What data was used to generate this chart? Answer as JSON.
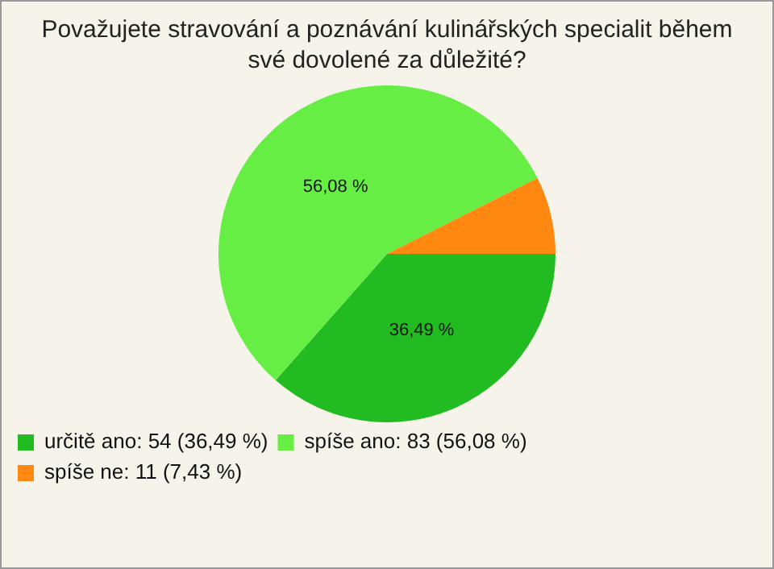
{
  "chart_data": {
    "type": "pie",
    "title": "Považujete stravování a poznávání kulinářských specialit během své dovolené za důležité?",
    "categories": [
      "určitě ano: 54 (36,49 %)",
      "spíše ano: 83 (56,08 %)",
      "spíše ne: 11 (7,43 %)"
    ],
    "values": [
      36.49,
      56.08,
      7.43
    ],
    "colors": [
      "#22bb22",
      "#66ee44",
      "#ff8811"
    ],
    "value_labels": [
      "36,49 %",
      "56,08 %",
      null
    ],
    "legend": "bottom left"
  }
}
